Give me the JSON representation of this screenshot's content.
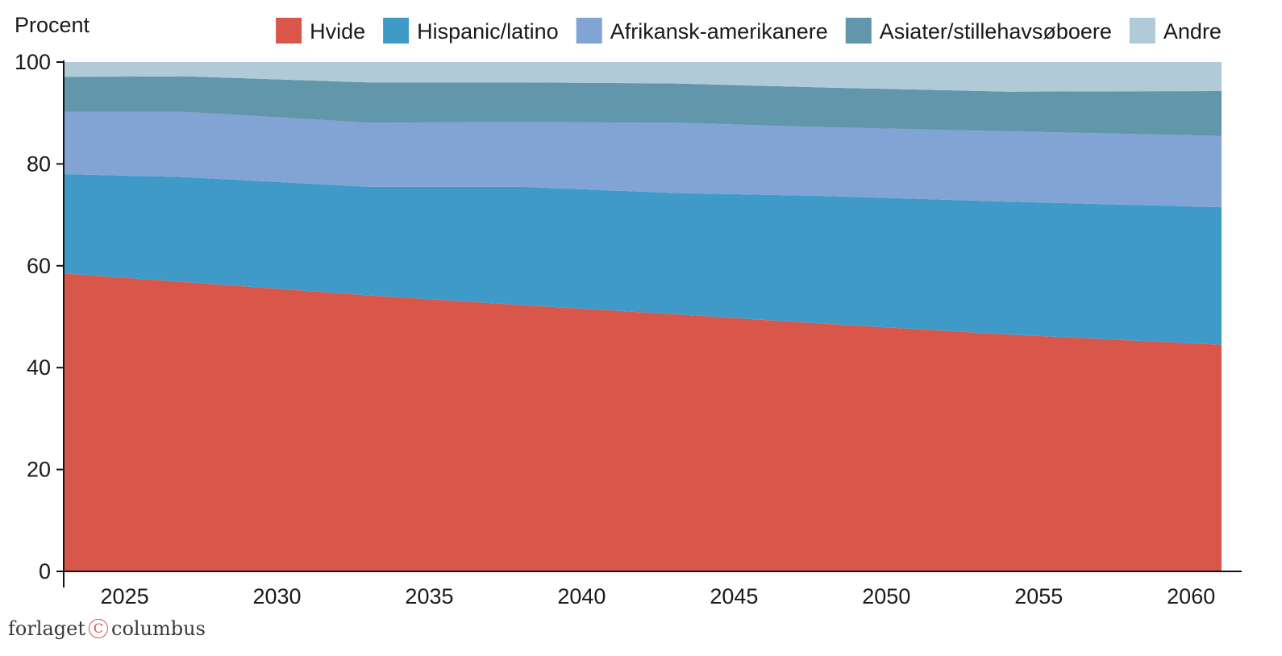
{
  "publisher": {
    "left": "forlaget",
    "mark": "C",
    "right": "columbus"
  },
  "chart_data": {
    "type": "area",
    "stacked": true,
    "ylabel": "Procent",
    "ylim": [
      0,
      100
    ],
    "yticks": [
      0,
      20,
      40,
      60,
      80,
      100
    ],
    "xlim": [
      2023,
      2061
    ],
    "xticks": [
      2025,
      2030,
      2035,
      2040,
      2045,
      2050,
      2055,
      2060
    ],
    "x": [
      2023,
      2027,
      2033,
      2038,
      2043,
      2048,
      2054,
      2061
    ],
    "legend_position": "top",
    "series": [
      {
        "name": "Hvide",
        "color": "#d9574a",
        "values": [
          58.5,
          56.8,
          54.2,
          52.3,
          50.5,
          48.6,
          46.5,
          44.5
        ]
      },
      {
        "name": "Hispanic/latino",
        "color": "#3f9ac7",
        "values": [
          19.5,
          20.6,
          21.3,
          23.2,
          23.8,
          25.1,
          26.1,
          27.0
        ]
      },
      {
        "name": "Afrikansk-amerikanere",
        "color": "#82a4d4",
        "values": [
          12.2,
          12.8,
          12.6,
          12.7,
          13.8,
          13.5,
          13.8,
          14.0
        ]
      },
      {
        "name": "Asiater/stillehavsøboere",
        "color": "#6296ab",
        "values": [
          6.9,
          7.0,
          7.9,
          7.8,
          7.7,
          7.8,
          7.8,
          8.8
        ]
      },
      {
        "name": "Andre",
        "color": "#b0cbd7",
        "values": [
          2.9,
          2.8,
          4.0,
          4.0,
          4.2,
          5.0,
          5.8,
          5.7
        ]
      }
    ]
  }
}
